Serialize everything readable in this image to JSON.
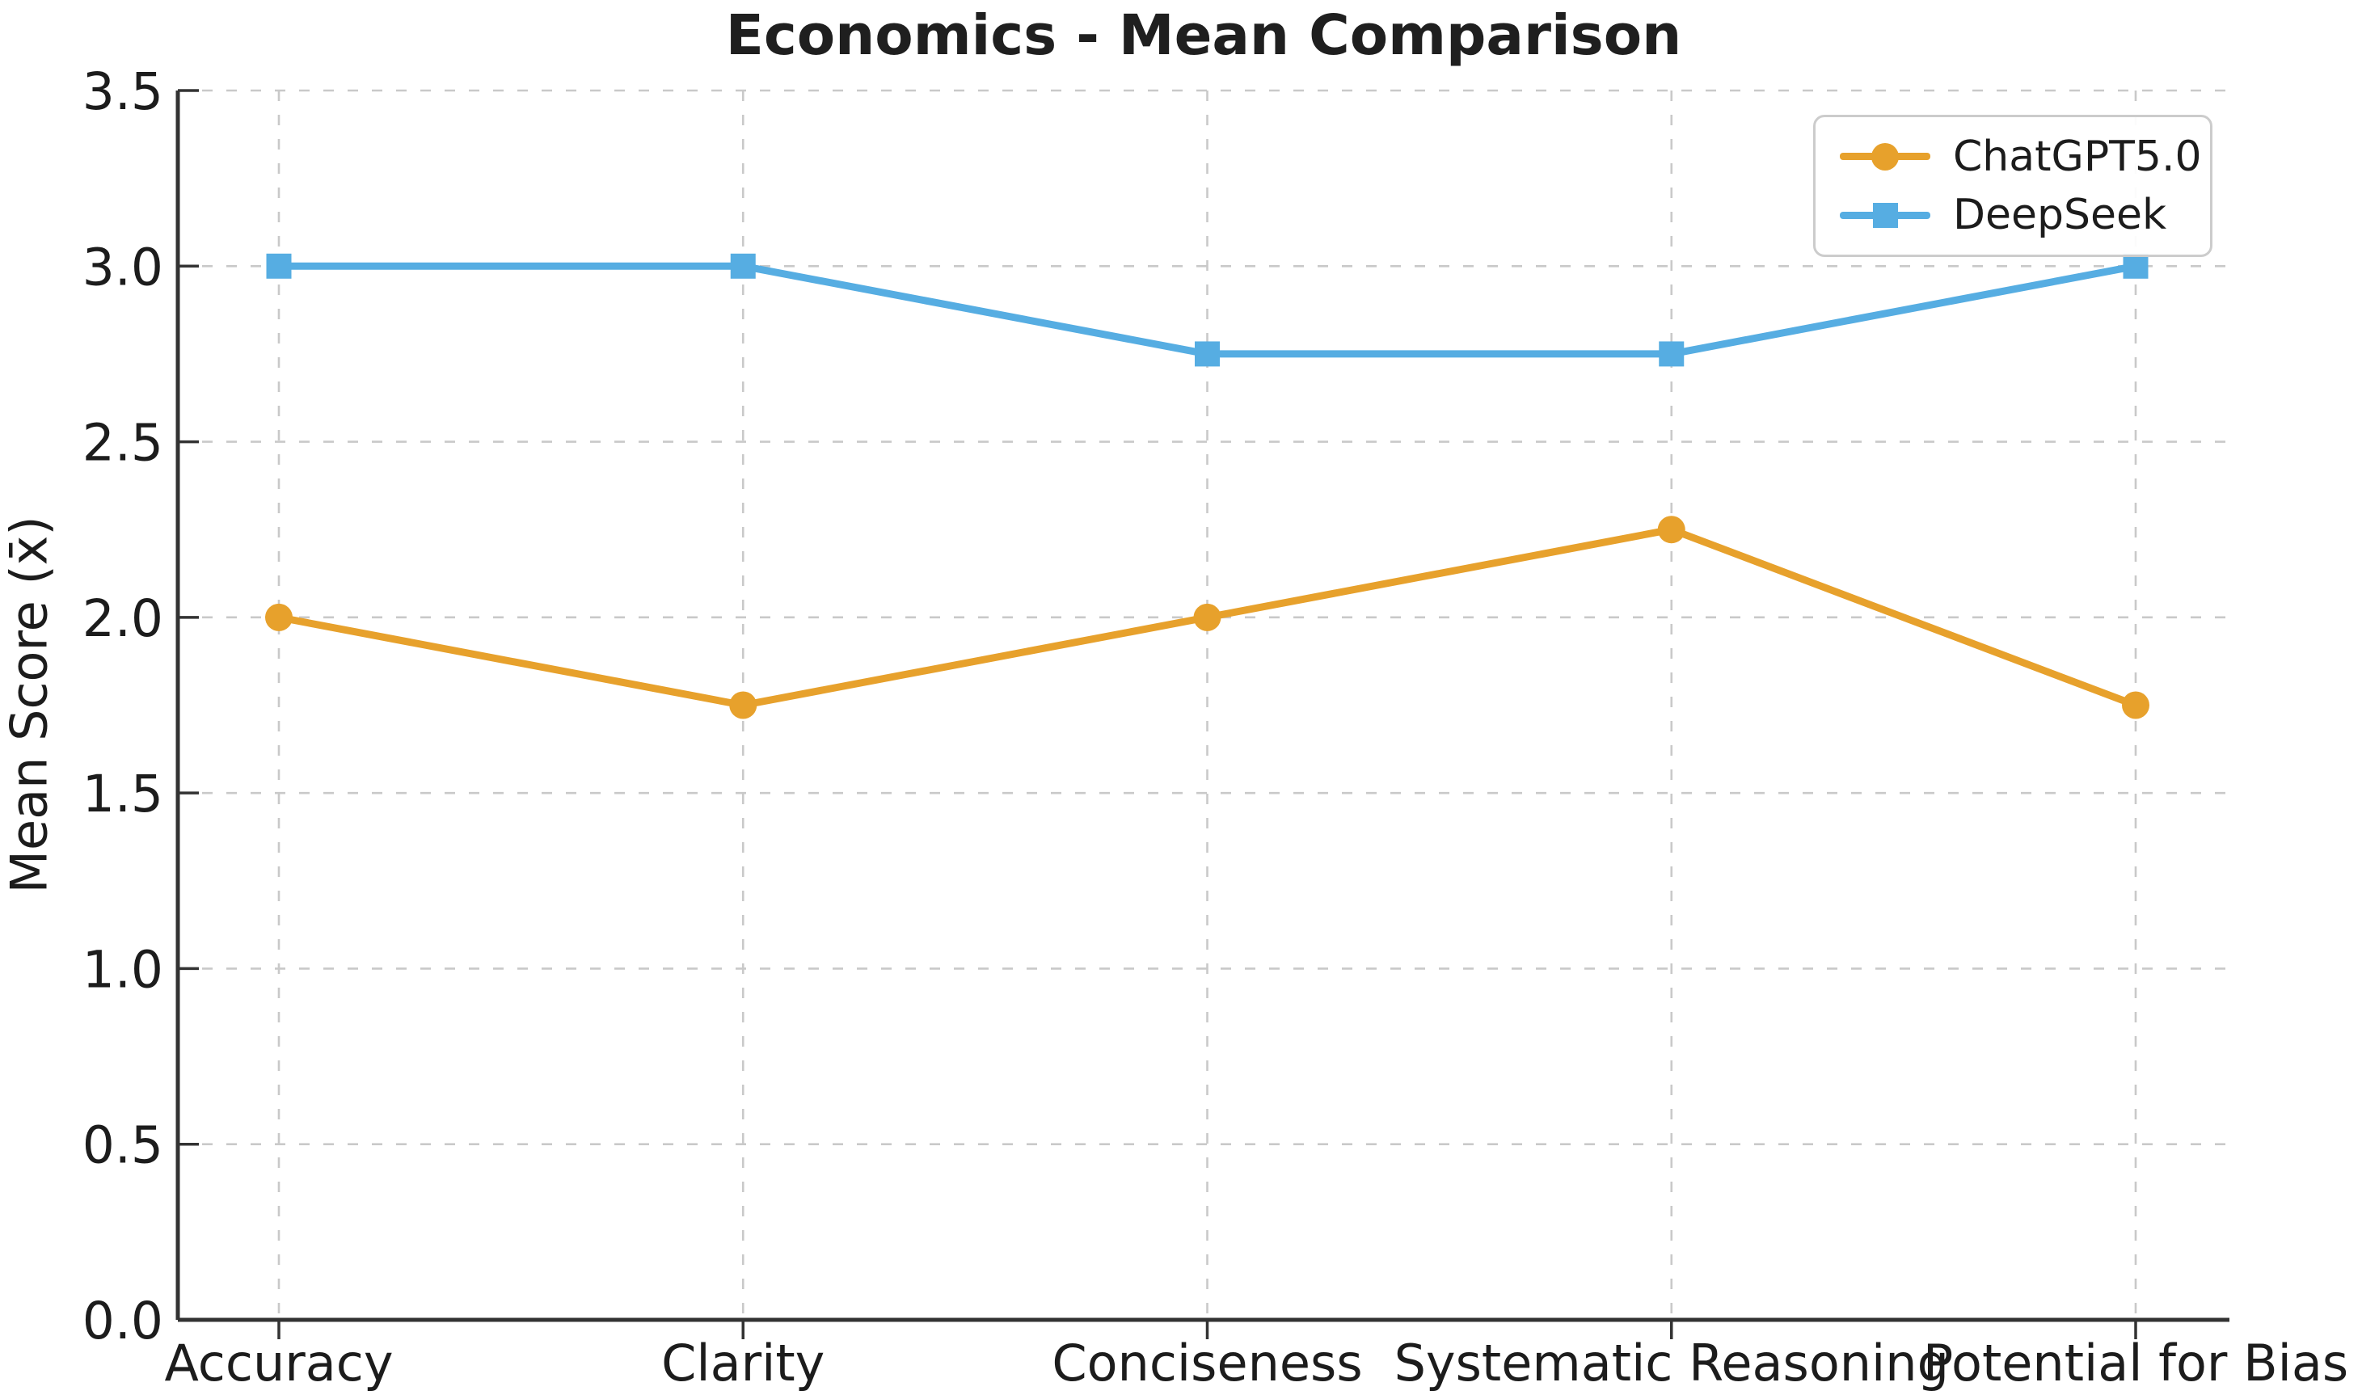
{
  "chart_data": {
    "type": "line",
    "title": "Economics - Mean Comparison",
    "xlabel": "",
    "ylabel": "Mean Score (x̄)",
    "categories": [
      "Accuracy",
      "Clarity",
      "Conciseness",
      "Systematic Reasoning",
      "Potential for Bias"
    ],
    "series": [
      {
        "name": "ChatGPT5.0",
        "color": "#E7A12C",
        "marker": "circle",
        "values": [
          2.0,
          1.75,
          2.0,
          2.25,
          1.75
        ]
      },
      {
        "name": "DeepSeek",
        "color": "#56ADE2",
        "marker": "square",
        "values": [
          3.0,
          3.0,
          2.75,
          2.75,
          3.0
        ]
      }
    ],
    "ylim": [
      0,
      3.5
    ],
    "y_ticks": [
      0.0,
      0.5,
      1.0,
      1.5,
      2.0,
      2.5,
      3.0,
      3.5
    ],
    "grid": true,
    "grid_style": "dashed",
    "legend_position": "upper right",
    "colors": {
      "grid": "#c9c9c9",
      "spine": "#333333",
      "tick": "#333333",
      "text": "#1c1c1c"
    }
  }
}
